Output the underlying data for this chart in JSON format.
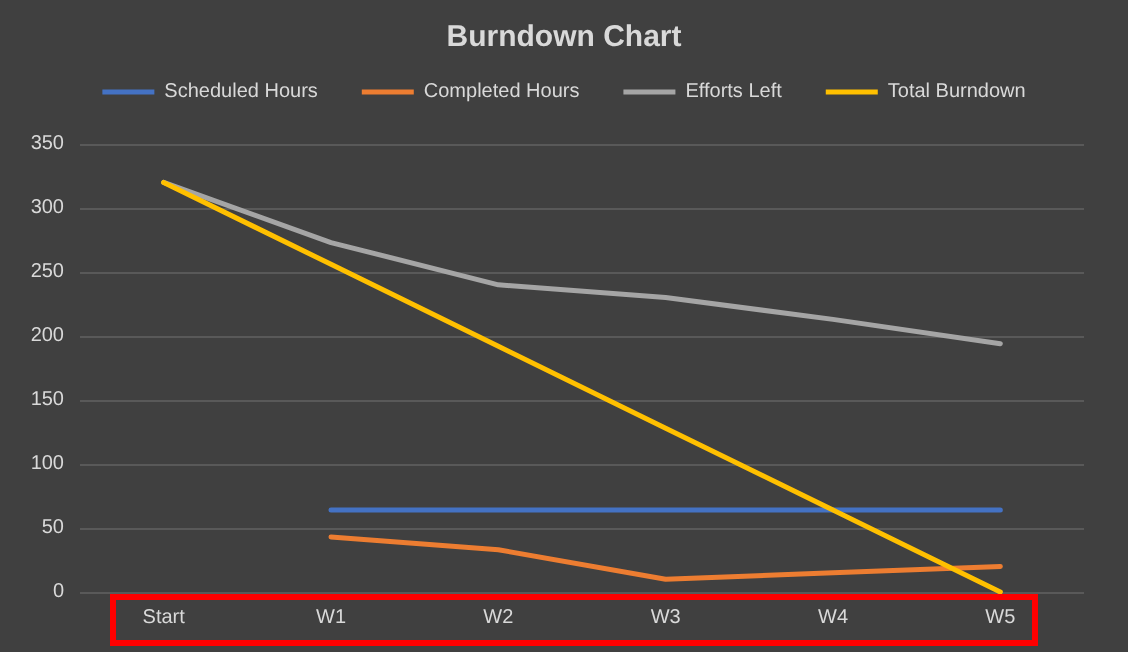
{
  "chart_data": {
    "type": "line",
    "title": "Burndown Chart",
    "categories": [
      "Start",
      "W1",
      "W2",
      "W3",
      "W4",
      "W5"
    ],
    "series": [
      {
        "name": "Scheduled Hours",
        "color": "#4472c4",
        "values": [
          null,
          64,
          64,
          64,
          64,
          64
        ]
      },
      {
        "name": "Completed Hours",
        "color": "#ed7d31",
        "values": [
          null,
          43,
          33,
          10,
          15,
          20
        ]
      },
      {
        "name": "Efforts Left",
        "color": "#a5a5a5",
        "values": [
          320,
          273,
          240,
          230,
          213,
          194
        ]
      },
      {
        "name": "Total Burndown",
        "color": "#ffc000",
        "values": [
          320,
          256,
          192,
          128,
          64,
          0
        ]
      }
    ],
    "ylim": [
      0,
      350
    ],
    "yticks": [
      0,
      50,
      100,
      150,
      200,
      250,
      300,
      350
    ],
    "grid": "y",
    "legend": "top",
    "marker": "none",
    "line_style": "solid"
  }
}
